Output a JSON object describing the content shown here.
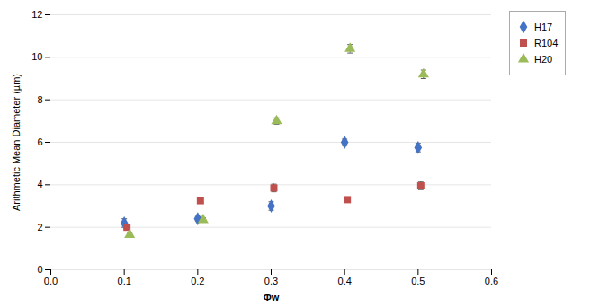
{
  "chart_data": {
    "type": "scatter",
    "xlabel": "Φw",
    "ylabel": "Arithmetic Mean Diameter (µm)",
    "x": [
      0.1,
      0.2,
      0.3,
      0.4,
      0.5
    ],
    "series": [
      {
        "name": "H17",
        "color": "#4472C4",
        "marker": "diamond",
        "values": [
          2.2,
          2.4,
          3.0,
          6.0,
          5.75
        ],
        "yerr": [
          0.2,
          0.1,
          0.2,
          0.15,
          0.2
        ]
      },
      {
        "name": "R104",
        "color": "#C0504D",
        "marker": "square",
        "values": [
          2.0,
          3.25,
          3.85,
          3.3,
          3.95
        ],
        "yerr": [
          0.12,
          0.12,
          0.18,
          0.12,
          0.18
        ]
      },
      {
        "name": "H20",
        "color": "#9BBB59",
        "marker": "triangle",
        "values": [
          1.65,
          2.35,
          7.0,
          10.4,
          9.2
        ],
        "yerr": [
          0.1,
          0.1,
          0.15,
          0.2,
          0.2
        ]
      }
    ],
    "xlim": [
      0,
      0.6
    ],
    "ylim": [
      0,
      12
    ],
    "xticks": [
      {
        "value": 0,
        "label": "0.0"
      },
      0.1,
      0.2,
      0.3,
      0.4,
      0.5,
      0.6
    ],
    "yticks": [
      0,
      2,
      4,
      6,
      8,
      10,
      12
    ],
    "grid": "y",
    "legend": "right"
  }
}
